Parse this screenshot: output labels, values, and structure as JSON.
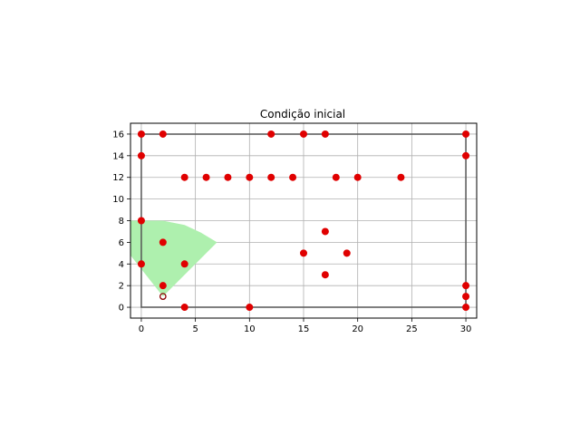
{
  "chart_data": {
    "type": "scatter",
    "title": "Condição inicial",
    "xlabel": "",
    "ylabel": "",
    "xlim": [
      -1,
      31
    ],
    "ylim": [
      -1,
      17
    ],
    "xticks": [
      0,
      5,
      10,
      15,
      20,
      25,
      30
    ],
    "yticks": [
      0,
      2,
      4,
      6,
      8,
      10,
      12,
      14,
      16
    ],
    "xtick_labels": [
      "0",
      "5",
      "10",
      "15",
      "20",
      "25",
      "30"
    ],
    "ytick_labels": [
      "0",
      "2",
      "4",
      "6",
      "8",
      "10",
      "12",
      "14",
      "16"
    ],
    "grid": true,
    "points_color": "#e00000",
    "points": [
      {
        "x": 0,
        "y": 16
      },
      {
        "x": 2,
        "y": 16
      },
      {
        "x": 12,
        "y": 16
      },
      {
        "x": 15,
        "y": 16
      },
      {
        "x": 17,
        "y": 16
      },
      {
        "x": 30,
        "y": 16
      },
      {
        "x": 0,
        "y": 14
      },
      {
        "x": 30,
        "y": 14
      },
      {
        "x": 4,
        "y": 12
      },
      {
        "x": 6,
        "y": 12
      },
      {
        "x": 8,
        "y": 12
      },
      {
        "x": 10,
        "y": 12
      },
      {
        "x": 12,
        "y": 12
      },
      {
        "x": 14,
        "y": 12
      },
      {
        "x": 18,
        "y": 12
      },
      {
        "x": 20,
        "y": 12
      },
      {
        "x": 24,
        "y": 12
      },
      {
        "x": 0,
        "y": 8
      },
      {
        "x": 17,
        "y": 7
      },
      {
        "x": 2,
        "y": 6
      },
      {
        "x": 15,
        "y": 5
      },
      {
        "x": 19,
        "y": 5
      },
      {
        "x": 0,
        "y": 4
      },
      {
        "x": 4,
        "y": 4
      },
      {
        "x": 17,
        "y": 3
      },
      {
        "x": 2,
        "y": 2
      },
      {
        "x": 30,
        "y": 2
      },
      {
        "x": 30,
        "y": 1
      },
      {
        "x": 4,
        "y": 0
      },
      {
        "x": 10,
        "y": 0
      },
      {
        "x": 30,
        "y": 0
      }
    ],
    "robot": {
      "x": 2,
      "y": 1,
      "color": "#8b0000"
    },
    "boundary": {
      "color": "#555555",
      "path": [
        [
          0,
          16
        ],
        [
          30,
          16
        ],
        [
          30,
          0
        ],
        [
          0,
          0
        ],
        [
          0,
          16
        ]
      ]
    },
    "sensor_cone": {
      "color": "#aef0ae",
      "polygon": [
        [
          2,
          1
        ],
        [
          -1,
          4.8
        ],
        [
          -1,
          8
        ],
        [
          2,
          8
        ],
        [
          4,
          7.6
        ],
        [
          5.5,
          6.9
        ],
        [
          7,
          6
        ]
      ]
    }
  }
}
